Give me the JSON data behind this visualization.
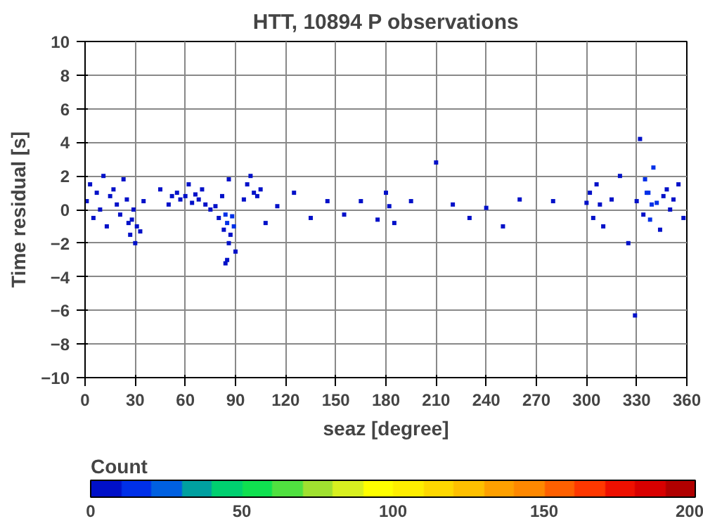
{
  "chart_data": {
    "type": "scatter",
    "title": "HTT, 10894 P observations",
    "xlabel": "seaz [degree]",
    "ylabel": "Time residual [s]",
    "clabel": "Count",
    "xlim": [
      0,
      360
    ],
    "ylim": [
      -10,
      10
    ],
    "xticks": [
      0,
      30,
      60,
      90,
      120,
      150,
      180,
      210,
      240,
      270,
      300,
      330,
      360
    ],
    "yticks": [
      -10,
      -8,
      -6,
      -4,
      -2,
      0,
      2,
      4,
      6,
      8,
      10
    ],
    "clim": [
      0,
      200
    ],
    "cticks": [
      0,
      50,
      100,
      150,
      200
    ],
    "grid": true,
    "marker": "square",
    "x": [
      1,
      3,
      5,
      7,
      9,
      11,
      13,
      15,
      17,
      19,
      21,
      23,
      25,
      26,
      27,
      28,
      29,
      30,
      31,
      33,
      35,
      45,
      50,
      52,
      55,
      57,
      60,
      62,
      64,
      66,
      68,
      70,
      72,
      75,
      78,
      80,
      82,
      83,
      84,
      85,
      86,
      87,
      88,
      89,
      90,
      84,
      86,
      85,
      95,
      97,
      99,
      101,
      103,
      105,
      108,
      115,
      125,
      135,
      145,
      155,
      165,
      175,
      180,
      182,
      185,
      195,
      210,
      220,
      230,
      240,
      250,
      260,
      280,
      300,
      302,
      304,
      306,
      308,
      310,
      315,
      320,
      325,
      330,
      332,
      334,
      336,
      338,
      340,
      342,
      344,
      346,
      348,
      350,
      352,
      355,
      358,
      337,
      339,
      335,
      329
    ],
    "values": [
      0.5,
      1.5,
      -0.5,
      1.0,
      0.0,
      2.0,
      -1.0,
      0.8,
      1.2,
      0.3,
      -0.3,
      1.8,
      0.6,
      -0.8,
      -1.5,
      -0.6,
      0.0,
      -2.0,
      -1.0,
      -1.3,
      0.5,
      1.2,
      0.3,
      0.8,
      1.0,
      0.6,
      0.8,
      1.5,
      0.4,
      0.9,
      0.6,
      1.2,
      0.3,
      0.0,
      0.2,
      -0.5,
      0.8,
      -1.2,
      -0.3,
      -0.8,
      -2.0,
      -1.5,
      -0.4,
      -1.0,
      -2.5,
      -3.2,
      1.8,
      -3.0,
      0.6,
      1.5,
      2.0,
      1.0,
      0.8,
      1.2,
      -0.8,
      0.2,
      1.0,
      -0.5,
      0.5,
      -0.3,
      0.5,
      -0.6,
      1.0,
      0.2,
      -0.8,
      0.5,
      2.8,
      0.3,
      -0.5,
      0.1,
      -1.0,
      0.6,
      0.5,
      0.4,
      1.0,
      -0.5,
      1.5,
      0.3,
      -1.0,
      0.6,
      2.0,
      -2.0,
      0.5,
      4.2,
      -0.3,
      1.0,
      -0.6,
      2.5,
      0.4,
      -1.2,
      0.8,
      1.2,
      0.0,
      0.6,
      1.5,
      -0.5,
      1.0,
      0.3,
      1.8,
      -6.3
    ],
    "cvalues": [
      8,
      5,
      4,
      6,
      5,
      3,
      3,
      6,
      7,
      5,
      4,
      3,
      6,
      5,
      7,
      6,
      8,
      3,
      5,
      4,
      3,
      3,
      8,
      7,
      9,
      8,
      9,
      6,
      8,
      7,
      6,
      7,
      5,
      6,
      6,
      8,
      9,
      7,
      12,
      13,
      9,
      8,
      12,
      14,
      4,
      2,
      3,
      2,
      6,
      4,
      6,
      5,
      4,
      2,
      3,
      1,
      1,
      1,
      1,
      1,
      1,
      1,
      1,
      1,
      1,
      1,
      1,
      1,
      1,
      1,
      1,
      1,
      1,
      4,
      8,
      6,
      5,
      9,
      7,
      4,
      5,
      4,
      6,
      8,
      9,
      10,
      12,
      13,
      11,
      9,
      6,
      5,
      4,
      3,
      3,
      2,
      15,
      14,
      12,
      1
    ]
  }
}
